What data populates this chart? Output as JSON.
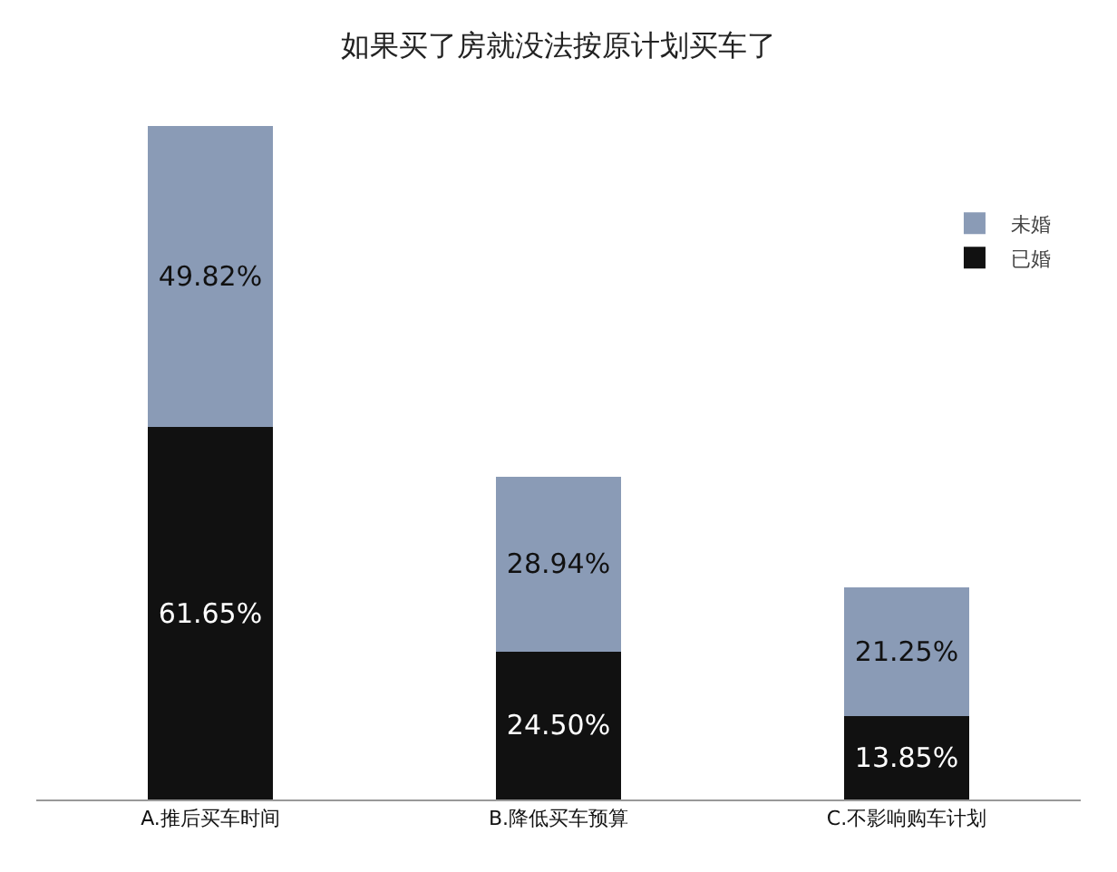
{
  "chart_data": {
    "type": "bar",
    "title": "如果买了房就没法按原计划买车了",
    "categories": [
      "A.推后买车时间",
      "B.降低买车预算",
      "C.不影响购车计划"
    ],
    "stacked": true,
    "legend": "top right",
    "grid": false,
    "series": [
      {
        "name": "已婚",
        "color": "#111111",
        "values": [
          61.65,
          24.5,
          13.85
        ],
        "value_labels": [
          "61.65%",
          "24.50%",
          "13.85%"
        ]
      },
      {
        "name": "未婚",
        "color": "#8a9bb6",
        "values": [
          49.82,
          28.94,
          21.25
        ],
        "value_labels": [
          "49.82%",
          "28.94%",
          "21.25%"
        ]
      }
    ]
  }
}
